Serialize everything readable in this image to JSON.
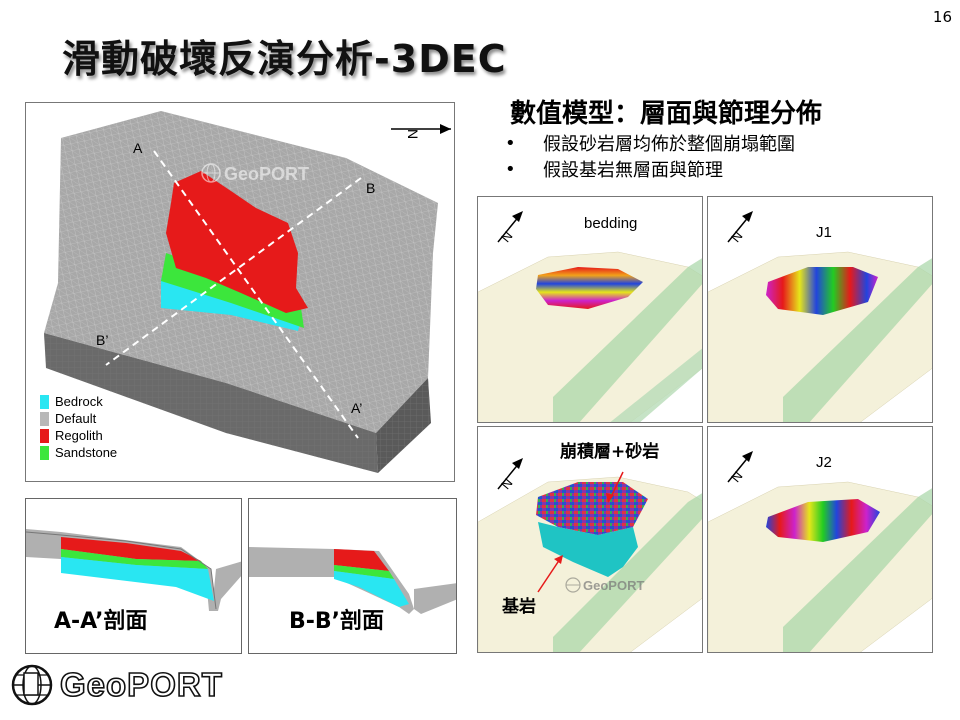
{
  "page_number": "16",
  "title": "滑動破壞反演分析-3DEC",
  "model": {
    "labels": {
      "a": "A",
      "b": "B",
      "a_prime": "A’",
      "b_prime": "B’",
      "north": "N"
    },
    "watermark": "GeoPORT",
    "legend": [
      {
        "label": "Bedrock",
        "color": "#29e6f2"
      },
      {
        "label": "Default",
        "color": "#b8b8b8"
      },
      {
        "label": "Regolith",
        "color": "#e61a1a"
      },
      {
        "label": "Sandstone",
        "color": "#3ce63c"
      }
    ]
  },
  "sections": [
    {
      "label": "A-A’剖面"
    },
    {
      "label": "B-B’剖面"
    }
  ],
  "logo": {
    "text": "GeoPORT"
  },
  "right": {
    "subtitle": "數值模型：層面與節理分佈",
    "bullets": [
      "假設砂岩層均佈於整個崩塌範圍",
      "假設基岩無層面與節理"
    ],
    "panels": [
      {
        "label": "bedding"
      },
      {
        "label": "J1"
      },
      {
        "label": ""
      },
      {
        "label": "J2"
      }
    ],
    "annotation_top": "崩積層+砂岩",
    "annotation_bottom": "基岩",
    "watermark": "GeoPORT",
    "north": "N"
  }
}
